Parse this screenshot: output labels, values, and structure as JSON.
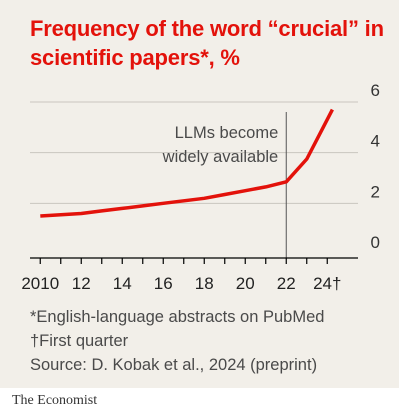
{
  "chart_data": {
    "type": "line",
    "title": "Frequency of the word “crucial” in scientific papers*, %",
    "x": [
      2010,
      2011,
      2012,
      2013,
      2014,
      2015,
      2016,
      2017,
      2018,
      2019,
      2020,
      2021,
      2022,
      2023,
      2024.25
    ],
    "values": [
      1.5,
      1.55,
      1.6,
      1.7,
      1.8,
      1.9,
      2.0,
      2.1,
      2.2,
      2.35,
      2.5,
      2.65,
      2.85,
      3.75,
      5.7
    ],
    "xlim": [
      2009.5,
      2025.5
    ],
    "ylim": [
      0,
      6
    ],
    "y_ticks": [
      0,
      2,
      4,
      6
    ],
    "x_tick_labels": [
      {
        "x": 2010,
        "label": "2010"
      },
      {
        "x": 2012,
        "label": "12"
      },
      {
        "x": 2014,
        "label": "14"
      },
      {
        "x": 2016,
        "label": "16"
      },
      {
        "x": 2018,
        "label": "18"
      },
      {
        "x": 2020,
        "label": "20"
      },
      {
        "x": 2022,
        "label": "22"
      },
      {
        "x": 2024,
        "label": "24†"
      }
    ],
    "annotation": {
      "x": 2022,
      "lines": [
        "LLMs become",
        "widely available"
      ]
    },
    "grid": true,
    "line_color": "#e3120b"
  },
  "footnotes": {
    "asterisk": "*English-language abstracts on PubMed",
    "dagger": "†First quarter",
    "source": "Source: D. Kobak et al., 2024 (preprint)"
  },
  "brand": "The Economist"
}
